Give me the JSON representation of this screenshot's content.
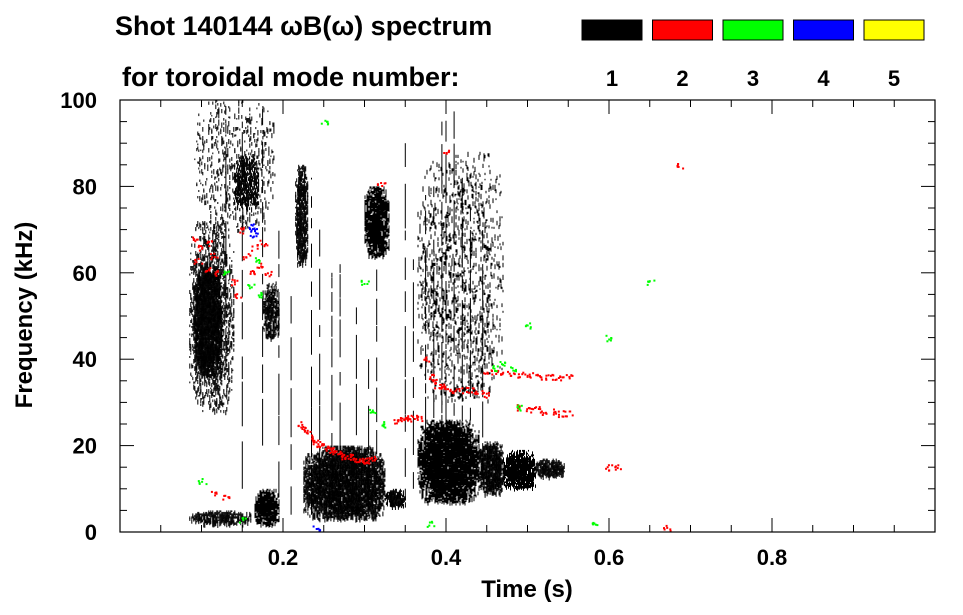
{
  "chart_data": {
    "type": "heatmap",
    "title_line1": "Shot 140144 ωB(ω) spectrum",
    "title_line2": "for toroidal mode number:",
    "xlabel": "Time (s)",
    "ylabel": "Frequency (kHz)",
    "xlim": [
      0.0,
      1.0
    ],
    "ylim": [
      0,
      100
    ],
    "x_ticks": [
      0.2,
      0.4,
      0.6,
      0.8
    ],
    "x_tick_labels": [
      "0.2",
      "0.4",
      "0.6",
      "0.8"
    ],
    "x_minor_step": 0.05,
    "y_ticks": [
      0,
      20,
      40,
      60,
      80,
      100
    ],
    "y_tick_labels": [
      "0",
      "20",
      "40",
      "60",
      "80",
      "100"
    ],
    "y_minor_step": 5,
    "grid": false,
    "legend_position": "top-right",
    "legend": [
      {
        "n": "1",
        "color": "#000000"
      },
      {
        "n": "2",
        "color": "#ff0000"
      },
      {
        "n": "3",
        "color": "#00ff00"
      },
      {
        "n": "4",
        "color": "#0000ff"
      },
      {
        "n": "5",
        "color": "#ffff00"
      }
    ],
    "series": [
      {
        "mode": "1",
        "color": "#000000",
        "blobs": [
          {
            "t0": 0.09,
            "t1": 0.125,
            "f0": 36,
            "f1": 62,
            "density": 0.92
          },
          {
            "t0": 0.085,
            "t1": 0.14,
            "f0": 28,
            "f1": 72,
            "density": 0.3
          },
          {
            "t0": 0.085,
            "t1": 0.16,
            "f0": 2,
            "f1": 5,
            "density": 0.7
          },
          {
            "t0": 0.165,
            "t1": 0.195,
            "f0": 2,
            "f1": 10,
            "density": 0.85
          },
          {
            "t0": 0.14,
            "t1": 0.17,
            "f0": 75,
            "f1": 87,
            "density": 0.6
          },
          {
            "t0": 0.175,
            "t1": 0.195,
            "f0": 45,
            "f1": 58,
            "density": 0.6
          },
          {
            "t0": 0.215,
            "t1": 0.23,
            "f0": 62,
            "f1": 85,
            "density": 0.8
          },
          {
            "t0": 0.225,
            "t1": 0.325,
            "f0": 3,
            "f1": 20,
            "density": 0.9
          },
          {
            "t0": 0.325,
            "t1": 0.35,
            "f0": 6,
            "f1": 10,
            "density": 0.8
          },
          {
            "t0": 0.3,
            "t1": 0.33,
            "f0": 64,
            "f1": 80,
            "density": 0.8
          },
          {
            "t0": 0.365,
            "t1": 0.44,
            "f0": 7,
            "f1": 26,
            "density": 0.88
          },
          {
            "t0": 0.44,
            "t1": 0.47,
            "f0": 9,
            "f1": 21,
            "density": 0.85
          },
          {
            "t0": 0.47,
            "t1": 0.51,
            "f0": 10,
            "f1": 19,
            "density": 0.85
          },
          {
            "t0": 0.51,
            "t1": 0.545,
            "f0": 13,
            "f1": 17,
            "density": 0.8
          },
          {
            "t0": 0.365,
            "t1": 0.47,
            "f0": 30,
            "f1": 88,
            "density": 0.12
          },
          {
            "t0": 0.09,
            "t1": 0.19,
            "f0": 70,
            "f1": 100,
            "density": 0.1
          }
        ],
        "vlines": [
          {
            "t": 0.235,
            "f0": 4,
            "f1": 82
          },
          {
            "t": 0.27,
            "f0": 5,
            "f1": 62
          },
          {
            "t": 0.245,
            "f0": 6,
            "f1": 70
          },
          {
            "t": 0.29,
            "f0": 8,
            "f1": 52
          },
          {
            "t": 0.305,
            "f0": 5,
            "f1": 40
          },
          {
            "t": 0.315,
            "f0": 18,
            "f1": 80
          },
          {
            "t": 0.35,
            "f0": 8,
            "f1": 90
          },
          {
            "t": 0.36,
            "f0": 10,
            "f1": 65
          },
          {
            "t": 0.4,
            "f0": 12,
            "f1": 100
          },
          {
            "t": 0.41,
            "f0": 12,
            "f1": 98
          },
          {
            "t": 0.395,
            "f0": 15,
            "f1": 95
          },
          {
            "t": 0.42,
            "f0": 15,
            "f1": 82
          },
          {
            "t": 0.385,
            "f0": 15,
            "f1": 80
          },
          {
            "t": 0.43,
            "f0": 15,
            "f1": 75
          },
          {
            "t": 0.445,
            "f0": 15,
            "f1": 70
          },
          {
            "t": 0.375,
            "f0": 15,
            "f1": 78
          },
          {
            "t": 0.13,
            "f0": 38,
            "f1": 98
          },
          {
            "t": 0.15,
            "f0": 10,
            "f1": 95
          },
          {
            "t": 0.175,
            "f0": 20,
            "f1": 98
          },
          {
            "t": 0.195,
            "f0": 8,
            "f1": 70
          },
          {
            "t": 0.21,
            "f0": 4,
            "f1": 55
          },
          {
            "t": 0.26,
            "f0": 6,
            "f1": 60
          }
        ]
      },
      {
        "mode": "2",
        "color": "#ff0000",
        "points": [
          [
            0.09,
            68
          ],
          [
            0.095,
            63
          ],
          [
            0.1,
            66
          ],
          [
            0.105,
            61
          ],
          [
            0.11,
            67
          ],
          [
            0.115,
            64
          ],
          [
            0.12,
            60
          ],
          [
            0.15,
            70
          ],
          [
            0.155,
            64
          ],
          [
            0.16,
            60
          ],
          [
            0.165,
            66
          ],
          [
            0.17,
            62
          ],
          [
            0.175,
            67
          ],
          [
            0.18,
            60
          ],
          [
            0.14,
            58
          ],
          [
            0.145,
            55
          ],
          [
            0.22,
            25
          ],
          [
            0.225,
            24
          ],
          [
            0.23,
            23
          ],
          [
            0.235,
            22
          ],
          [
            0.24,
            21
          ],
          [
            0.245,
            20.5
          ],
          [
            0.25,
            20
          ],
          [
            0.255,
            19.5
          ],
          [
            0.26,
            19
          ],
          [
            0.265,
            18.5
          ],
          [
            0.27,
            18
          ],
          [
            0.275,
            17.5
          ],
          [
            0.28,
            17.5
          ],
          [
            0.285,
            17
          ],
          [
            0.29,
            17
          ],
          [
            0.295,
            16.5
          ],
          [
            0.3,
            16.5
          ],
          [
            0.305,
            17
          ],
          [
            0.31,
            17
          ],
          [
            0.34,
            25.5
          ],
          [
            0.345,
            26
          ],
          [
            0.35,
            26.5
          ],
          [
            0.355,
            26
          ],
          [
            0.36,
            27
          ],
          [
            0.365,
            26.5
          ],
          [
            0.375,
            40
          ],
          [
            0.38,
            36
          ],
          [
            0.385,
            35
          ],
          [
            0.39,
            34
          ],
          [
            0.395,
            34
          ],
          [
            0.4,
            33.5
          ],
          [
            0.41,
            33
          ],
          [
            0.42,
            33
          ],
          [
            0.43,
            33
          ],
          [
            0.44,
            32.5
          ],
          [
            0.45,
            32
          ],
          [
            0.45,
            37
          ],
          [
            0.46,
            37
          ],
          [
            0.47,
            37
          ],
          [
            0.48,
            37
          ],
          [
            0.49,
            36.5
          ],
          [
            0.5,
            36.5
          ],
          [
            0.51,
            36.5
          ],
          [
            0.52,
            36
          ],
          [
            0.53,
            36
          ],
          [
            0.54,
            36
          ],
          [
            0.55,
            36
          ],
          [
            0.49,
            29
          ],
          [
            0.5,
            28.5
          ],
          [
            0.51,
            28.5
          ],
          [
            0.52,
            28
          ],
          [
            0.53,
            28
          ],
          [
            0.54,
            27.5
          ],
          [
            0.55,
            27.5
          ],
          [
            0.32,
            81
          ],
          [
            0.4,
            88
          ],
          [
            0.115,
            9
          ],
          [
            0.13,
            8
          ],
          [
            0.6,
            15
          ],
          [
            0.61,
            15
          ],
          [
            0.685,
            85
          ],
          [
            0.67,
            1
          ]
        ]
      },
      {
        "mode": "3",
        "color": "#00ff00",
        "points": [
          [
            0.1,
            12
          ],
          [
            0.15,
            3
          ],
          [
            0.17,
            55
          ],
          [
            0.25,
            95
          ],
          [
            0.3,
            58
          ],
          [
            0.31,
            28
          ],
          [
            0.32,
            25
          ],
          [
            0.46,
            38
          ],
          [
            0.47,
            39
          ],
          [
            0.48,
            38
          ],
          [
            0.49,
            29
          ],
          [
            0.5,
            48
          ],
          [
            0.58,
            2
          ],
          [
            0.6,
            45
          ],
          [
            0.65,
            58
          ],
          [
            0.38,
            2
          ],
          [
            0.13,
            60
          ],
          [
            0.16,
            57
          ],
          [
            0.17,
            63
          ]
        ]
      },
      {
        "mode": "4",
        "color": "#0000ff",
        "points": [
          [
            0.16,
            70
          ],
          [
            0.162,
            71
          ],
          [
            0.164,
            69
          ],
          [
            0.24,
            1
          ]
        ]
      },
      {
        "mode": "5",
        "color": "#ffff00",
        "points": []
      }
    ]
  }
}
